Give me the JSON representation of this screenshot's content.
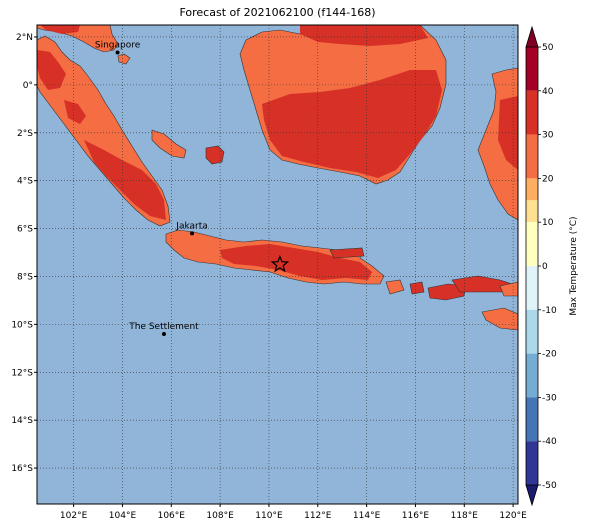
{
  "title": "Forecast of 2021062100 (f144-168)",
  "map": {
    "lon_range": [
      100.5,
      120.2
    ],
    "lat_range": [
      -17.5,
      2.5
    ],
    "ocean_color": "#91b4d9",
    "grid": true,
    "lon_ticks": [
      {
        "value": 102,
        "label": "102°E"
      },
      {
        "value": 104,
        "label": "104°E"
      },
      {
        "value": 106,
        "label": "106°E"
      },
      {
        "value": 108,
        "label": "108°E"
      },
      {
        "value": 110,
        "label": "110°E"
      },
      {
        "value": 112,
        "label": "112°E"
      },
      {
        "value": 114,
        "label": "114°E"
      },
      {
        "value": 116,
        "label": "116°E"
      },
      {
        "value": 118,
        "label": "118°E"
      },
      {
        "value": 120,
        "label": "120°E"
      }
    ],
    "lat_ticks": [
      {
        "value": 2,
        "label": "2°N"
      },
      {
        "value": 0,
        "label": "0°"
      },
      {
        "value": -2,
        "label": "2°S"
      },
      {
        "value": -4,
        "label": "4°S"
      },
      {
        "value": -6,
        "label": "6°S"
      },
      {
        "value": -8,
        "label": "8°S"
      },
      {
        "value": -10,
        "label": "10°S"
      },
      {
        "value": -12,
        "label": "12°S"
      },
      {
        "value": -14,
        "label": "14°S"
      },
      {
        "value": -16,
        "label": "16°S"
      }
    ],
    "cities": [
      {
        "name": "Singapore",
        "lon": 103.8,
        "lat": 1.35
      },
      {
        "name": "Jakarta",
        "lon": 106.85,
        "lat": -6.2
      },
      {
        "name": "The Settlement",
        "lon": 105.7,
        "lat": -10.4
      }
    ],
    "marker": {
      "type": "star",
      "lon": 110.45,
      "lat": -7.5
    }
  },
  "colorbar": {
    "label": "Max Temperature (°C)",
    "ticks": [
      50,
      40,
      30,
      20,
      10,
      0,
      -10,
      -20,
      -30,
      -40,
      -50
    ],
    "levels": [
      {
        "min": 40,
        "max": 50,
        "color": "#a50026"
      },
      {
        "min": 30,
        "max": 40,
        "color": "#d73027"
      },
      {
        "min": 20,
        "max": 30,
        "color": "#f46d43"
      },
      {
        "min": 15,
        "max": 20,
        "color": "#fdae61"
      },
      {
        "min": 10,
        "max": 15,
        "color": "#fee090"
      },
      {
        "min": 0,
        "max": 10,
        "color": "#ffffbf"
      },
      {
        "min": -10,
        "max": 0,
        "color": "#e0f3f8"
      },
      {
        "min": -20,
        "max": -10,
        "color": "#abd9e9"
      },
      {
        "min": -30,
        "max": -20,
        "color": "#74add1"
      },
      {
        "min": -40,
        "max": -30,
        "color": "#4575b4"
      },
      {
        "min": -50,
        "max": -40,
        "color": "#313695"
      }
    ],
    "extend_top_color": "#800026",
    "extend_bottom_color": "#1a1a6e"
  }
}
